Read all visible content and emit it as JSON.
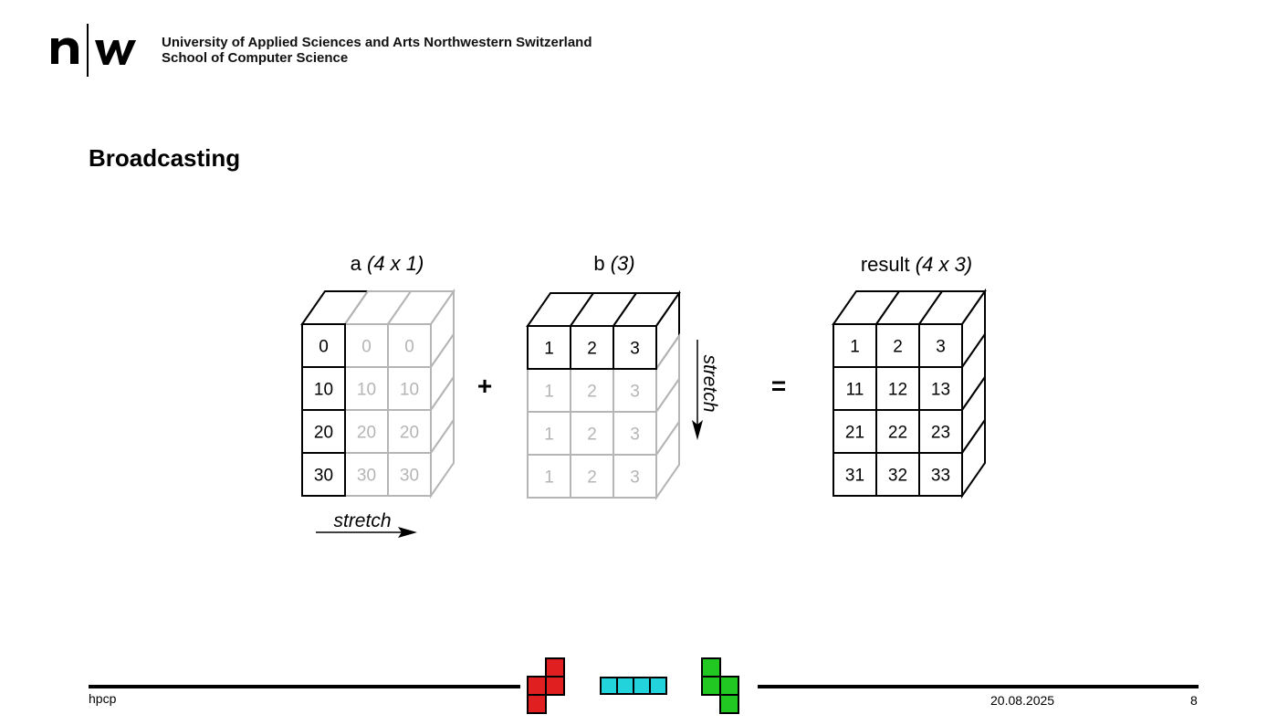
{
  "header": {
    "logo_text": "n|w",
    "institution_line1": "University of Applied Sciences and Arts Northwestern Switzerland",
    "institution_line2": "School of Computer Science"
  },
  "slide": {
    "title": "Broadcasting"
  },
  "diagram": {
    "a": {
      "name": "a",
      "shape": "(4 x 1)",
      "values": [
        "0",
        "10",
        "20",
        "30"
      ],
      "stretch_label": "stretch"
    },
    "b": {
      "name": "b",
      "shape": "(3)",
      "values": [
        "1",
        "2",
        "3"
      ],
      "stretch_label": "stretch"
    },
    "result": {
      "name": "result",
      "shape": "(4 x 3)",
      "rows": [
        [
          "1",
          "2",
          "3"
        ],
        [
          "11",
          "12",
          "13"
        ],
        [
          "21",
          "22",
          "23"
        ],
        [
          "31",
          "32",
          "33"
        ]
      ]
    },
    "plus": "+",
    "equals": "=",
    "colors": {
      "solid": "#000000",
      "faded": "#b5b5b5"
    }
  },
  "footer": {
    "left": "hpcp",
    "date": "20.08.2025",
    "page": "8",
    "tetromino_colors": [
      "#e02020",
      "#22d3dc",
      "#22c822"
    ]
  }
}
